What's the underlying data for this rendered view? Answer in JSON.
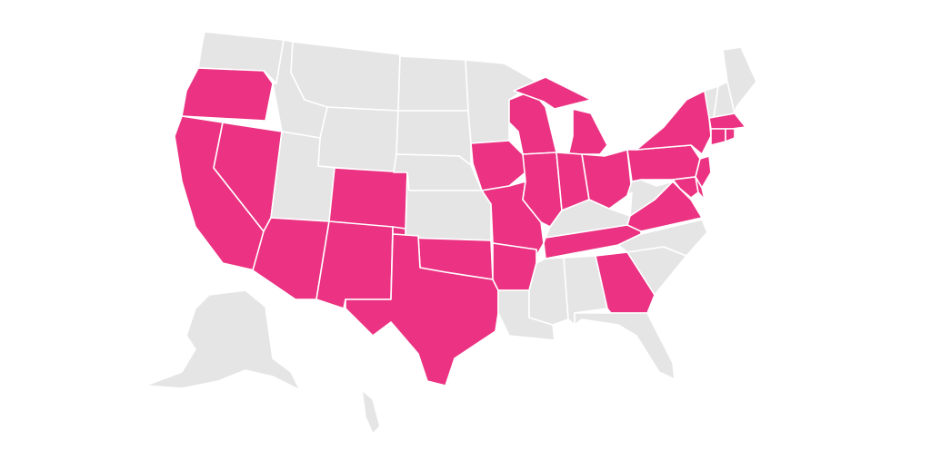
{
  "map": {
    "colors": {
      "highlighted": "#ec3282",
      "default": "#e5e5e5",
      "border": "#ffffff"
    },
    "states": {
      "WA": false,
      "OR": true,
      "CA": true,
      "NV": true,
      "ID": false,
      "MT": false,
      "WY": false,
      "UT": false,
      "CO": true,
      "AZ": true,
      "NM": true,
      "ND": false,
      "SD": false,
      "NE": false,
      "KS": false,
      "OK": true,
      "TX": true,
      "MN": false,
      "IA": true,
      "MO": true,
      "AR": true,
      "LA": false,
      "WI": true,
      "MI_UP": true,
      "MI": true,
      "IL": true,
      "IN": true,
      "OH": true,
      "KY": false,
      "TN": true,
      "MS": false,
      "AL": false,
      "GA": true,
      "FL": false,
      "SC": false,
      "NC": false,
      "VA": true,
      "WV": false,
      "PA": true,
      "NY": true,
      "VT": false,
      "NH": false,
      "ME": false,
      "MA": true,
      "CT": true,
      "RI": true,
      "NJ": true,
      "MD": true,
      "DE": true,
      "AK": false,
      "HI": false
    }
  }
}
